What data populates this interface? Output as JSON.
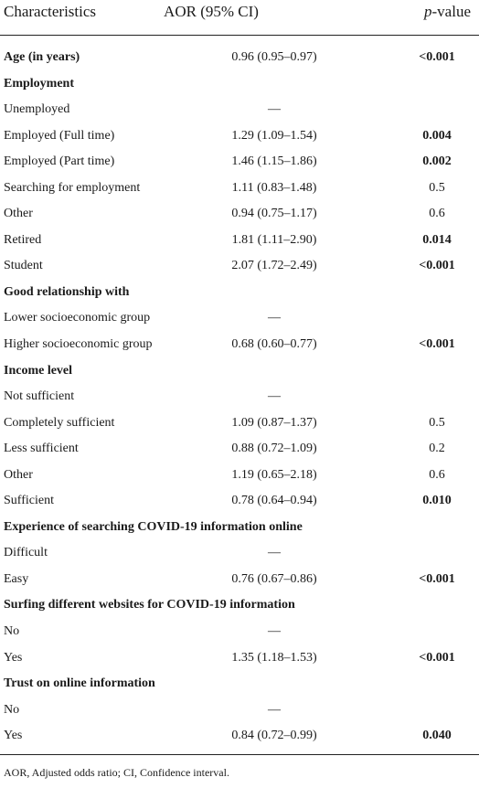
{
  "header": {
    "characteristics": "Characteristics",
    "aor": "AOR (95% CI)",
    "pvalue_italic": "p",
    "pvalue_rest": "-value"
  },
  "rows": [
    {
      "label": "Age (in years)",
      "aor": "0.96 (0.95–0.97)",
      "p": "<0.001",
      "section": true,
      "bold_p": true
    },
    {
      "label": "Employment",
      "aor": "",
      "p": "",
      "section": true,
      "bold_p": false
    },
    {
      "label": "Unemployed",
      "aor": "—",
      "p": "",
      "section": false,
      "bold_p": false
    },
    {
      "label": "Employed (Full time)",
      "aor": "1.29 (1.09–1.54)",
      "p": "0.004",
      "section": false,
      "bold_p": true
    },
    {
      "label": "Employed (Part time)",
      "aor": "1.46 (1.15–1.86)",
      "p": "0.002",
      "section": false,
      "bold_p": true
    },
    {
      "label": "Searching for employment",
      "aor": "1.11 (0.83–1.48)",
      "p": "0.5",
      "section": false,
      "bold_p": false
    },
    {
      "label": "Other",
      "aor": "0.94 (0.75–1.17)",
      "p": "0.6",
      "section": false,
      "bold_p": false
    },
    {
      "label": "Retired",
      "aor": "1.81 (1.11–2.90)",
      "p": "0.014",
      "section": false,
      "bold_p": true
    },
    {
      "label": "Student",
      "aor": "2.07 (1.72–2.49)",
      "p": "<0.001",
      "section": false,
      "bold_p": true
    },
    {
      "label": "Good relationship with",
      "aor": "",
      "p": "",
      "section": true,
      "bold_p": false
    },
    {
      "label": "Lower socioeconomic group",
      "aor": "—",
      "p": "",
      "section": false,
      "bold_p": false
    },
    {
      "label": "Higher socioeconomic group",
      "aor": "0.68 (0.60–0.77)",
      "p": "<0.001",
      "section": false,
      "bold_p": true
    },
    {
      "label": "Income level",
      "aor": "",
      "p": "",
      "section": true,
      "bold_p": false
    },
    {
      "label": "Not sufficient",
      "aor": "—",
      "p": "",
      "section": false,
      "bold_p": false
    },
    {
      "label": "Completely sufficient",
      "aor": "1.09 (0.87–1.37)",
      "p": "0.5",
      "section": false,
      "bold_p": false
    },
    {
      "label": "Less sufficient",
      "aor": "0.88 (0.72–1.09)",
      "p": "0.2",
      "section": false,
      "bold_p": false
    },
    {
      "label": "Other",
      "aor": "1.19 (0.65–2.18)",
      "p": "0.6",
      "section": false,
      "bold_p": false
    },
    {
      "label": "Sufficient",
      "aor": "0.78 (0.64–0.94)",
      "p": "0.010",
      "section": false,
      "bold_p": true
    },
    {
      "label": "Experience of searching COVID-19 information online",
      "aor": "",
      "p": "",
      "section": true,
      "bold_p": false
    },
    {
      "label": "Difficult",
      "aor": "—",
      "p": "",
      "section": false,
      "bold_p": false
    },
    {
      "label": "Easy",
      "aor": "0.76 (0.67–0.86)",
      "p": "<0.001",
      "section": false,
      "bold_p": true
    },
    {
      "label": "Surfing different websites for COVID-19 information",
      "aor": "",
      "p": "",
      "section": true,
      "bold_p": false
    },
    {
      "label": "No",
      "aor": "—",
      "p": "",
      "section": false,
      "bold_p": false
    },
    {
      "label": "Yes",
      "aor": "1.35 (1.18–1.53)",
      "p": "<0.001",
      "section": false,
      "bold_p": true
    },
    {
      "label": "Trust on online information",
      "aor": "",
      "p": "",
      "section": true,
      "bold_p": false
    },
    {
      "label": "No",
      "aor": "—",
      "p": "",
      "section": false,
      "bold_p": false
    },
    {
      "label": "Yes",
      "aor": "0.84 (0.72–0.99)",
      "p": "0.040",
      "section": false,
      "bold_p": true
    }
  ],
  "footnote": "AOR, Adjusted odds ratio; CI, Confidence interval."
}
